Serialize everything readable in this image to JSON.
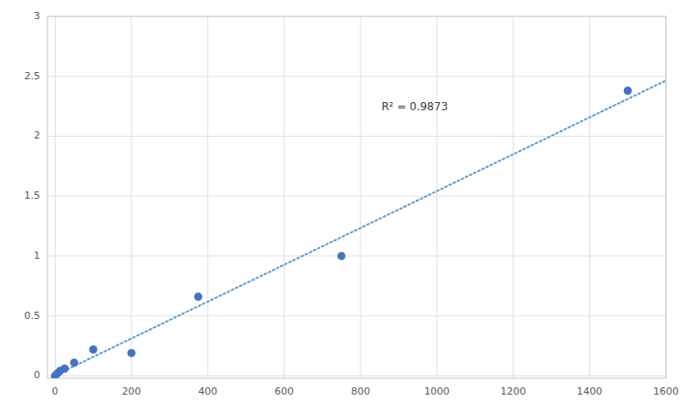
{
  "chart_data": {
    "type": "scatter",
    "series": [
      {
        "type": "line",
        "line_style": "dotted",
        "color": "#5B9BD5",
        "x": [
          0,
          1600
        ],
        "values": [
          0.00371713,
          2.4645125
        ]
      },
      {
        "type": "scatter",
        "color": "#4472C4",
        "x": [
          0,
          6.25,
          12.5,
          25,
          50,
          100,
          200,
          375,
          750,
          1500
        ],
        "values": [
          0.0,
          0.02,
          0.04,
          0.06,
          0.11,
          0.22,
          0.19,
          0.66,
          1.0,
          2.38
        ]
      }
    ],
    "annotations": [
      {
        "text": "R² = 0.9873",
        "x": 855,
        "y": 2.22
      }
    ],
    "xlim": [
      -20,
      1600
    ],
    "ylim": [
      -0.02,
      3.0
    ],
    "xticks": [
      0,
      200,
      400,
      600,
      800,
      1000,
      1200,
      1400,
      1600
    ],
    "yticks": [
      0,
      0.5,
      1,
      1.5,
      2,
      2.5,
      3
    ],
    "grid": true
  }
}
